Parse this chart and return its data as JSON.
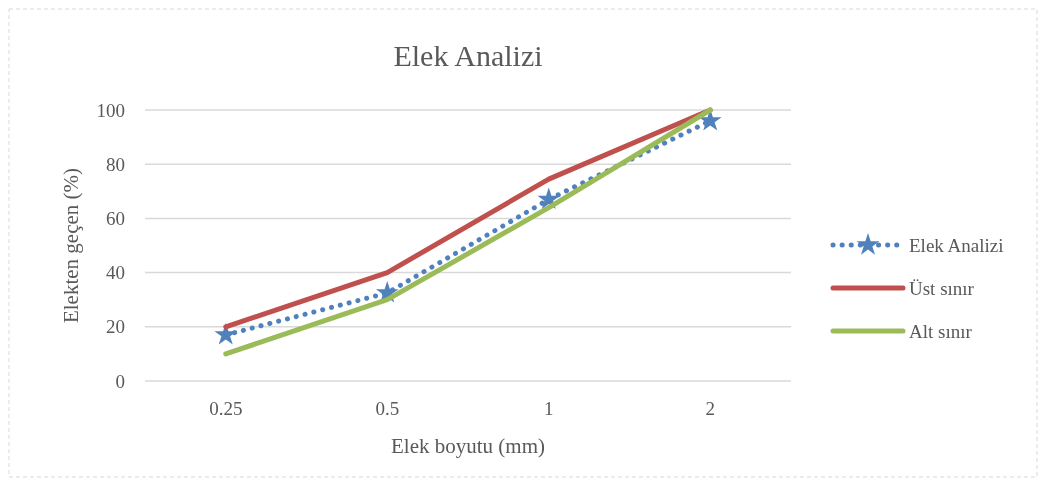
{
  "chart_data": {
    "type": "line",
    "title": "Elek Analizi",
    "xlabel": "Elek  boyutu (mm)",
    "ylabel": "Elekten geçen (%)",
    "categories": [
      "0.25",
      "0.5",
      "1",
      "2"
    ],
    "series": [
      {
        "name": "Elek Analizi",
        "color": "#4f81bd",
        "values": [
          17,
          32.5,
          67,
          96
        ],
        "line_style": "dotted",
        "marker": "star"
      },
      {
        "name": "Üst sınır",
        "color": "#c0504d",
        "values": [
          20,
          40,
          74.5,
          100
        ],
        "line_style": "solid",
        "marker": "none"
      },
      {
        "name": "Alt sınır",
        "color": "#9bbb59",
        "values": [
          10,
          30,
          64,
          100
        ],
        "line_style": "solid",
        "marker": "none"
      }
    ],
    "ylim": [
      0,
      100
    ],
    "yticks": [
      0,
      20,
      40,
      60,
      80,
      100
    ],
    "grid": "y",
    "legend": "right"
  }
}
